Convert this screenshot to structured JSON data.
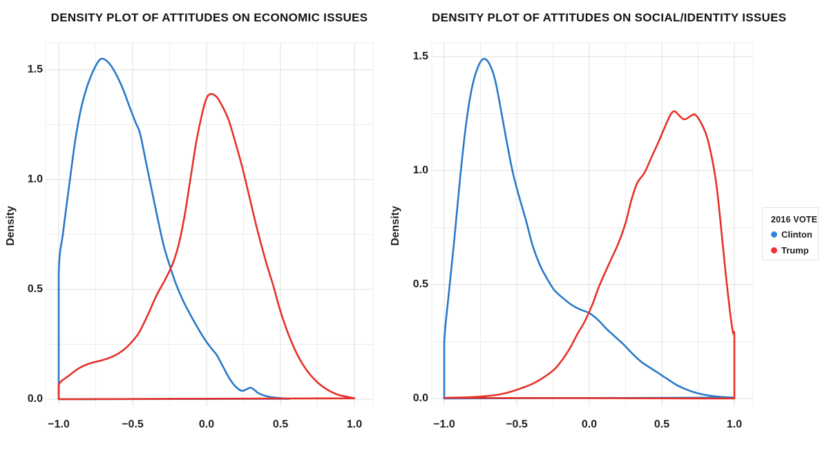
{
  "page": {
    "background": "#ffffff"
  },
  "legend": {
    "title": "2016 VOTE",
    "items": [
      {
        "label": "Clinton",
        "color": "#2f86e0"
      },
      {
        "label": "Trump",
        "color": "#ef3237"
      }
    ]
  },
  "chart_data": [
    {
      "type": "line",
      "subtype": "density",
      "title": "DENSITY PLOT OF ATTITUDES ON ECONOMIC ISSUES",
      "xlabel": "",
      "ylabel": "Density",
      "xlim": [
        -1.09,
        1.13
      ],
      "ylim": [
        0,
        1.62
      ],
      "grid": {
        "on": true,
        "minor_step": 0.25,
        "major_color": "#dedede",
        "minor_color": "#ececec"
      },
      "x_ticks": {
        "values": [
          -1.0,
          -0.5,
          0.0,
          0.5,
          1.0
        ],
        "labels": [
          "−1.0",
          "−0.5",
          "0.0",
          "0.5",
          "1.0"
        ]
      },
      "y_ticks": {
        "values": [
          0.0,
          0.5,
          1.0,
          1.5
        ],
        "labels": [
          "0.0",
          "0.5",
          "1.0",
          "1.5"
        ]
      },
      "legend_position": "right-outside",
      "series": [
        {
          "name": "Clinton",
          "color": "#2878c8",
          "peak": [
            -0.7,
            1.55
          ],
          "points": [
            [
              -1.0,
              0
            ],
            [
              -1.0,
              0.57
            ],
            [
              -0.97,
              0.76
            ],
            [
              -0.93,
              0.97
            ],
            [
              -0.89,
              1.17
            ],
            [
              -0.85,
              1.32
            ],
            [
              -0.81,
              1.42
            ],
            [
              -0.77,
              1.49
            ],
            [
              -0.73,
              1.54
            ],
            [
              -0.7,
              1.55
            ],
            [
              -0.66,
              1.53
            ],
            [
              -0.62,
              1.49
            ],
            [
              -0.57,
              1.42
            ],
            [
              -0.52,
              1.33
            ],
            [
              -0.48,
              1.26
            ],
            [
              -0.45,
              1.21
            ],
            [
              -0.41,
              1.08
            ],
            [
              -0.37,
              0.95
            ],
            [
              -0.33,
              0.82
            ],
            [
              -0.29,
              0.7
            ],
            [
              -0.25,
              0.61
            ],
            [
              -0.21,
              0.53
            ],
            [
              -0.16,
              0.45
            ],
            [
              -0.11,
              0.385
            ],
            [
              -0.06,
              0.325
            ],
            [
              -0.01,
              0.27
            ],
            [
              0.04,
              0.225
            ],
            [
              0.07,
              0.2
            ],
            [
              0.11,
              0.15
            ],
            [
              0.15,
              0.1
            ],
            [
              0.19,
              0.062
            ],
            [
              0.24,
              0.038
            ],
            [
              0.3,
              0.052
            ],
            [
              0.35,
              0.028
            ],
            [
              0.41,
              0.013
            ],
            [
              0.48,
              0.006
            ],
            [
              0.56,
              0.002
            ]
          ]
        },
        {
          "name": "Trump",
          "color": "#e63028",
          "peak": [
            0.03,
            1.39
          ],
          "points": [
            [
              -1.0,
              0
            ],
            [
              -1.0,
              0.066
            ],
            [
              -0.93,
              0.108
            ],
            [
              -0.86,
              0.142
            ],
            [
              -0.79,
              0.163
            ],
            [
              -0.72,
              0.175
            ],
            [
              -0.65,
              0.19
            ],
            [
              -0.58,
              0.215
            ],
            [
              -0.52,
              0.25
            ],
            [
              -0.46,
              0.3
            ],
            [
              -0.4,
              0.38
            ],
            [
              -0.34,
              0.47
            ],
            [
              -0.28,
              0.545
            ],
            [
              -0.23,
              0.615
            ],
            [
              -0.19,
              0.7
            ],
            [
              -0.15,
              0.83
            ],
            [
              -0.11,
              1.0
            ],
            [
              -0.07,
              1.17
            ],
            [
              -0.03,
              1.3
            ],
            [
              0.0,
              1.37
            ],
            [
              0.03,
              1.39
            ],
            [
              0.07,
              1.375
            ],
            [
              0.11,
              1.33
            ],
            [
              0.15,
              1.27
            ],
            [
              0.19,
              1.18
            ],
            [
              0.24,
              1.06
            ],
            [
              0.29,
              0.92
            ],
            [
              0.34,
              0.78
            ],
            [
              0.4,
              0.63
            ],
            [
              0.45,
              0.52
            ],
            [
              0.5,
              0.4
            ],
            [
              0.56,
              0.285
            ],
            [
              0.62,
              0.195
            ],
            [
              0.68,
              0.13
            ],
            [
              0.75,
              0.077
            ],
            [
              0.82,
              0.042
            ],
            [
              0.9,
              0.018
            ],
            [
              1.0,
              0.004
            ]
          ]
        }
      ]
    },
    {
      "type": "line",
      "subtype": "density",
      "title": "DENSITY PLOT OF ATTITUDES ON SOCIAL/IDENTITY ISSUES",
      "xlabel": "",
      "ylabel": "Density",
      "xlim": [
        -1.09,
        1.13
      ],
      "ylim": [
        0,
        1.56
      ],
      "grid": {
        "on": true,
        "minor_step": 0.25,
        "major_color": "#dedede",
        "minor_color": "#ececec"
      },
      "x_ticks": {
        "values": [
          -1.0,
          -0.5,
          0.0,
          0.5,
          1.0
        ],
        "labels": [
          "−1.0",
          "−0.5",
          "0.0",
          "0.5",
          "1.0"
        ]
      },
      "y_ticks": {
        "values": [
          0.0,
          0.5,
          1.0,
          1.5
        ],
        "labels": [
          "0.0",
          "0.5",
          "1.0",
          "1.5"
        ]
      },
      "legend_position": "right-outside",
      "series": [
        {
          "name": "Clinton",
          "color": "#2878c8",
          "peak": [
            -0.73,
            1.49
          ],
          "points": [
            [
              -1.0,
              0
            ],
            [
              -1.0,
              0.245
            ],
            [
              -0.97,
              0.45
            ],
            [
              -0.93,
              0.7
            ],
            [
              -0.89,
              0.97
            ],
            [
              -0.85,
              1.2
            ],
            [
              -0.81,
              1.36
            ],
            [
              -0.77,
              1.45
            ],
            [
              -0.73,
              1.49
            ],
            [
              -0.69,
              1.47
            ],
            [
              -0.65,
              1.4
            ],
            [
              -0.61,
              1.27
            ],
            [
              -0.57,
              1.13
            ],
            [
              -0.53,
              1.0
            ],
            [
              -0.49,
              0.9
            ],
            [
              -0.44,
              0.79
            ],
            [
              -0.39,
              0.67
            ],
            [
              -0.34,
              0.585
            ],
            [
              -0.29,
              0.525
            ],
            [
              -0.24,
              0.475
            ],
            [
              -0.18,
              0.44
            ],
            [
              -0.12,
              0.41
            ],
            [
              -0.06,
              0.39
            ],
            [
              0.0,
              0.375
            ],
            [
              0.06,
              0.345
            ],
            [
              0.12,
              0.305
            ],
            [
              0.18,
              0.27
            ],
            [
              0.24,
              0.235
            ],
            [
              0.3,
              0.195
            ],
            [
              0.36,
              0.16
            ],
            [
              0.42,
              0.135
            ],
            [
              0.48,
              0.11
            ],
            [
              0.54,
              0.085
            ],
            [
              0.6,
              0.06
            ],
            [
              0.66,
              0.042
            ],
            [
              0.72,
              0.028
            ],
            [
              0.79,
              0.017
            ],
            [
              0.86,
              0.01
            ],
            [
              0.93,
              0.006
            ],
            [
              1.0,
              0.004
            ]
          ]
        },
        {
          "name": "Trump",
          "color": "#e63028",
          "peak": [
            0.59,
            1.26
          ],
          "points": [
            [
              -1.0,
              0.003
            ],
            [
              -0.85,
              0.005
            ],
            [
              -0.72,
              0.01
            ],
            [
              -0.62,
              0.018
            ],
            [
              -0.54,
              0.03
            ],
            [
              -0.47,
              0.045
            ],
            [
              -0.4,
              0.062
            ],
            [
              -0.34,
              0.082
            ],
            [
              -0.28,
              0.108
            ],
            [
              -0.23,
              0.135
            ],
            [
              -0.18,
              0.175
            ],
            [
              -0.13,
              0.225
            ],
            [
              -0.08,
              0.285
            ],
            [
              -0.03,
              0.34
            ],
            [
              0.02,
              0.41
            ],
            [
              0.06,
              0.48
            ],
            [
              0.1,
              0.54
            ],
            [
              0.15,
              0.61
            ],
            [
              0.2,
              0.68
            ],
            [
              0.25,
              0.77
            ],
            [
              0.29,
              0.87
            ],
            [
              0.33,
              0.945
            ],
            [
              0.38,
              0.99
            ],
            [
              0.43,
              1.06
            ],
            [
              0.48,
              1.13
            ],
            [
              0.52,
              1.19
            ],
            [
              0.56,
              1.245
            ],
            [
              0.59,
              1.26
            ],
            [
              0.63,
              1.235
            ],
            [
              0.66,
              1.225
            ],
            [
              0.7,
              1.24
            ],
            [
              0.73,
              1.245
            ],
            [
              0.77,
              1.21
            ],
            [
              0.81,
              1.15
            ],
            [
              0.85,
              1.04
            ],
            [
              0.88,
              0.92
            ],
            [
              0.91,
              0.74
            ],
            [
              0.94,
              0.55
            ],
            [
              0.97,
              0.38
            ],
            [
              0.99,
              0.29
            ],
            [
              1.0,
              0.27
            ],
            [
              1.0,
              0
            ]
          ]
        }
      ]
    }
  ]
}
